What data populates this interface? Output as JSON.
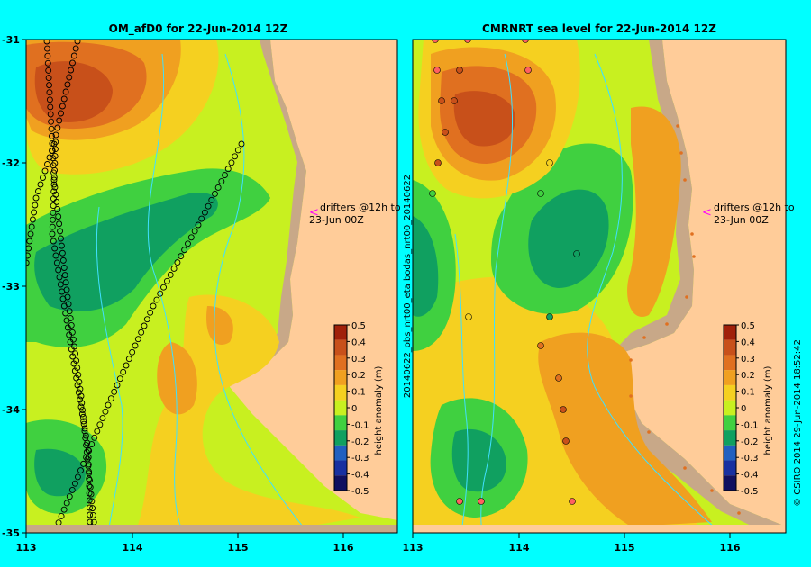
{
  "left_panel": {
    "title": "OM_afD0 for 22-Jun-2014 12Z",
    "drifter_note_line1": "drifters @12h to",
    "drifter_note_line2": "23-Jun 00Z"
  },
  "right_panel": {
    "title": "CMRNRT sea level  for 22-Jun-2014 12Z",
    "drifter_note_line1": "drifters @12h to",
    "drifter_note_line2": "23-Jun 00Z",
    "side_label": "20140622_obs_nrt00_eta   bodas_nrt00_20140622"
  },
  "axes": {
    "lat_ticks": [
      "-31",
      "-32",
      "-33",
      "-34",
      "-35"
    ],
    "lon_ticks": [
      "113",
      "114",
      "115",
      "116"
    ]
  },
  "colorbar": {
    "label": "height anomaly (m)",
    "ticks": [
      "0.5",
      "0.4",
      "0.3",
      "0.2",
      "0.1",
      "0",
      "-0.1",
      "-0.2",
      "-0.3",
      "-0.4",
      "-0.5"
    ],
    "colors": [
      "#a0200a",
      "#c8501a",
      "#e07020",
      "#f0a020",
      "#f5d020",
      "#c8f020",
      "#40d040",
      "#10a060",
      "#2060c0",
      "#1830a0",
      "#101060"
    ]
  },
  "footer": {
    "credit": "© CSIRO 2014   29-Jun-2014 18:52:42"
  },
  "colors": {
    "background": "#00ffff",
    "land": "#ffcc99",
    "shelf": "#c8a888",
    "drifter_arrow": "#ff00ff"
  }
}
